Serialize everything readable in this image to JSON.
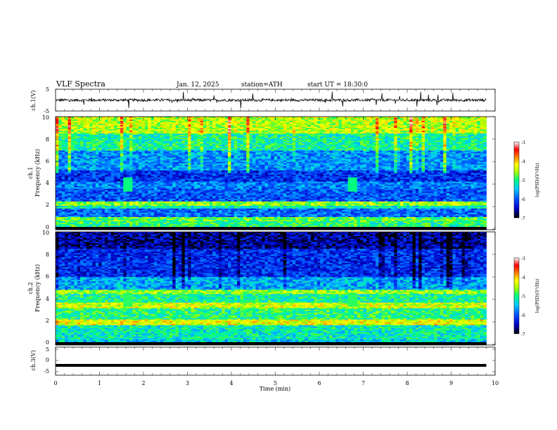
{
  "header": {
    "title": "VLF Spectra",
    "date": "Jan. 12, 2025",
    "station": "station=ATH",
    "start_ut": "start UT =  18:30:0"
  },
  "colors": {
    "scale": [
      "#000000",
      "#0000c8",
      "#0050ff",
      "#00c8ff",
      "#00ff80",
      "#a0ff00",
      "#ffff00",
      "#ff8000",
      "#ff0000",
      "#ffffff"
    ]
  },
  "chart_data": [
    {
      "type": "line",
      "panel": "ch1-waveform",
      "ylabel": "ch.1(V)",
      "ylim": [
        -5,
        5
      ],
      "y_ticks": [
        "5",
        "-5"
      ],
      "xlim": [
        0,
        10
      ],
      "x_data_range": [
        0,
        9.8
      ],
      "description_values": {
        "baseline": 0.0,
        "typical_amplitude": 0.6,
        "spike_amplitude": 3.5
      }
    },
    {
      "type": "heatmap",
      "panel": "ch1-spectrogram",
      "ylabel": "ch.1\nFrequency (kHz)",
      "ylim": [
        0,
        10
      ],
      "y_ticks": [
        "0",
        "2",
        "4",
        "6",
        "8",
        "10"
      ],
      "xlim": [
        0,
        10
      ],
      "x_data_range": [
        0,
        9.8
      ],
      "colorbar": {
        "label": "log(PSD)(V²/Hz)",
        "range": [
          -7,
          -3
        ],
        "ticks": [
          "-3",
          "-4",
          "-5",
          "-6",
          "-7"
        ]
      },
      "bands": [
        {
          "f": [
            0.0,
            0.3
          ],
          "logpsd": -6.3
        },
        {
          "f": [
            0.3,
            0.7
          ],
          "logpsd": -5.0
        },
        {
          "f": [
            0.7,
            1.1
          ],
          "logpsd": -4.8
        },
        {
          "f": [
            1.1,
            1.9
          ],
          "logpsd": -5.9
        },
        {
          "f": [
            1.9,
            2.1
          ],
          "logpsd": -5.2
        },
        {
          "f": [
            2.1,
            2.5
          ],
          "logpsd": -4.6
        },
        {
          "f": [
            2.5,
            3.6
          ],
          "logpsd": -6.0
        },
        {
          "f": [
            3.6,
            4.2
          ],
          "logpsd": -5.8
        },
        {
          "f": [
            4.2,
            5.2
          ],
          "logpsd": -6.2
        },
        {
          "f": [
            5.2,
            7.0
          ],
          "logpsd": -5.7
        },
        {
          "f": [
            7.0,
            8.5
          ],
          "logpsd": -5.1
        },
        {
          "f": [
            8.5,
            10.0
          ],
          "logpsd": -4.5
        }
      ],
      "events": [
        {
          "t": 1.65,
          "f": [
            3.4,
            4.6
          ],
          "logpsd": -5.0
        },
        {
          "t": 6.75,
          "f": [
            3.4,
            4.6
          ],
          "logpsd": -5.0
        }
      ]
    },
    {
      "type": "heatmap",
      "panel": "ch2-spectrogram",
      "ylabel": "ch.2\nFrequency (kHz)",
      "ylim": [
        0,
        10
      ],
      "y_ticks": [
        "0",
        "2",
        "4",
        "6",
        "8",
        "10"
      ],
      "xlim": [
        0,
        10
      ],
      "x_data_range": [
        0,
        9.8
      ],
      "colorbar": {
        "label": "log(PSD)(V²/Hz)",
        "range": [
          -7,
          -3
        ],
        "ticks": [
          "-3",
          "-4",
          "-5",
          "-6",
          "-7"
        ]
      },
      "bands": [
        {
          "f": [
            0.0,
            0.5
          ],
          "logpsd": -5.4
        },
        {
          "f": [
            0.5,
            1.8
          ],
          "logpsd": -5.2
        },
        {
          "f": [
            1.8,
            2.3
          ],
          "logpsd": -4.3
        },
        {
          "f": [
            2.3,
            3.3
          ],
          "logpsd": -5.0
        },
        {
          "f": [
            3.3,
            3.8
          ],
          "logpsd": -4.4
        },
        {
          "f": [
            3.8,
            4.5
          ],
          "logpsd": -5.1
        },
        {
          "f": [
            4.5,
            4.9
          ],
          "logpsd": -4.6
        },
        {
          "f": [
            4.9,
            6.0
          ],
          "logpsd": -5.6
        },
        {
          "f": [
            6.0,
            8.5
          ],
          "logpsd": -6.2
        },
        {
          "f": [
            8.5,
            10.0
          ],
          "logpsd": -6.6
        }
      ],
      "events": [
        {
          "t": 1.65,
          "f": [
            3.4,
            4.6
          ],
          "logpsd": -4.9
        },
        {
          "t": 6.75,
          "f": [
            3.4,
            4.6
          ],
          "logpsd": -4.9
        }
      ]
    },
    {
      "type": "line",
      "panel": "ch3-waveform",
      "ylabel": "ch.3(V)",
      "ylim": [
        -5,
        5
      ],
      "y_ticks": [
        "5",
        "0",
        "-5"
      ],
      "xlim": [
        0,
        10
      ],
      "x_data_range": [
        0,
        9.8
      ],
      "xlabel": "Time (min)",
      "x_ticks": [
        "0",
        "1",
        "2",
        "3",
        "4",
        "5",
        "6",
        "7",
        "8",
        "9",
        "10"
      ],
      "description_values": {
        "baseline": -1.5
      }
    }
  ]
}
